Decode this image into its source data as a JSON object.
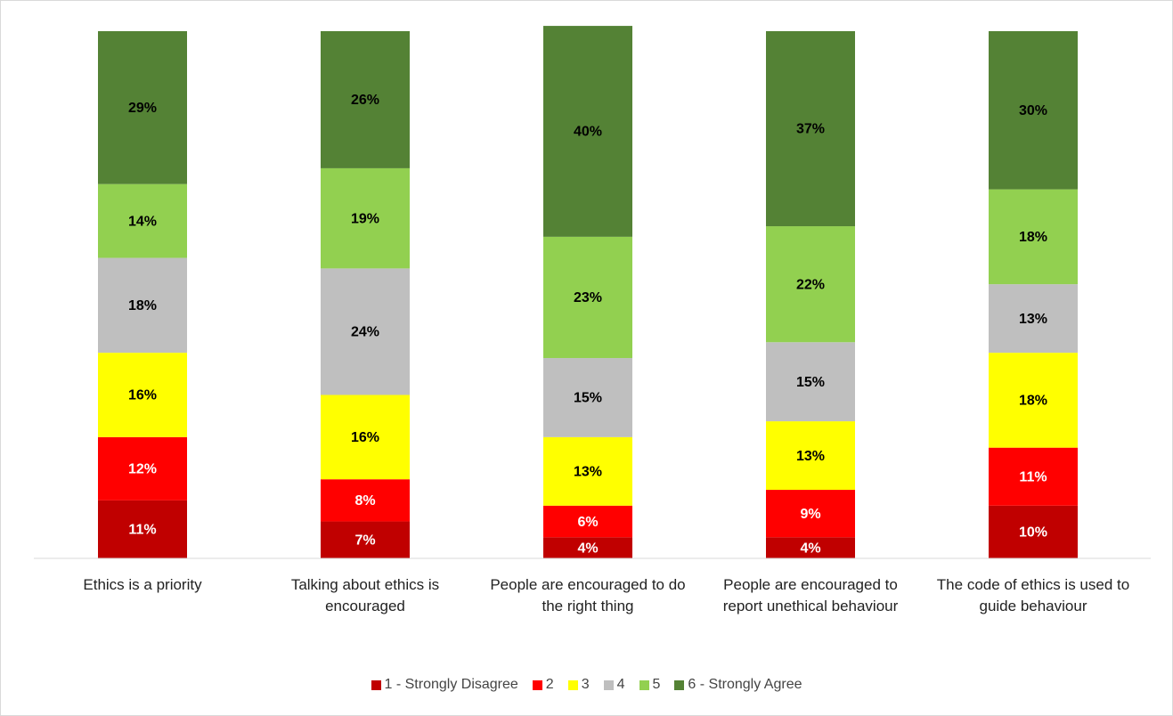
{
  "chart_data": {
    "type": "stacked_bar",
    "categories": [
      "Ethics is a priority",
      "Talking about ethics is encouraged",
      "People are encouraged to do the right thing",
      "People are encouraged to report unethical behaviour",
      "The code of ethics is used to guide behaviour"
    ],
    "series": [
      {
        "name": "1 - Strongly Disagree",
        "color": "#c00000",
        "label_color": "#ffffff",
        "values": [
          11,
          7,
          4,
          4,
          10
        ],
        "value_labels": [
          "11%",
          "7%",
          "4%",
          "4%",
          "10%"
        ]
      },
      {
        "name": "2",
        "color": "#ff0000",
        "label_color": "#ffffff",
        "values": [
          12,
          8,
          6,
          9,
          11
        ],
        "value_labels": [
          "12%",
          "8%",
          "6%",
          "9%",
          "11%"
        ]
      },
      {
        "name": "3",
        "color": "#ffff00",
        "label_color": "#000000",
        "values": [
          16,
          16,
          13,
          13,
          18
        ],
        "value_labels": [
          "16%",
          "16%",
          "13%",
          "13%",
          "18%"
        ]
      },
      {
        "name": "4",
        "color": "#bfbfbf",
        "label_color": "#000000",
        "values": [
          18,
          24,
          15,
          15,
          13
        ],
        "value_labels": [
          "18%",
          "24%",
          "15%",
          "15%",
          "13%"
        ]
      },
      {
        "name": "5",
        "color": "#92d050",
        "label_color": "#000000",
        "values": [
          14,
          19,
          23,
          22,
          18
        ],
        "value_labels": [
          "14%",
          "19%",
          "23%",
          "22%",
          "18%"
        ]
      },
      {
        "name": "6 - Strongly Agree",
        "color": "#548235",
        "label_color": "#000000",
        "values": [
          29,
          26,
          40,
          37,
          30
        ],
        "value_labels": [
          "29%",
          "26%",
          "40%",
          "37%",
          "30%"
        ]
      }
    ],
    "ylim": [
      0,
      100
    ],
    "legend": "bottom"
  }
}
